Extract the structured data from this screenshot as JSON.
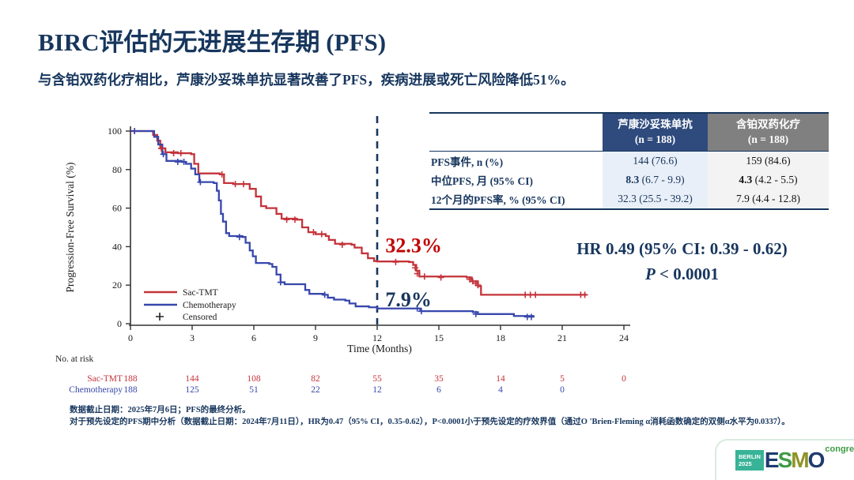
{
  "slide": {
    "title": "BIRC评估的无进展生存期 (PFS)",
    "subtitle": "与含铂双药化疗相比，芦康沙妥珠单抗显著改善了PFS，疾病进展或死亡风险降低51%。",
    "footnotes": [
      "数据截止日期：2025年7月6日；PFS的最终分析。",
      "对于预先设定的PFS期中分析（数据截止日期：2024年7月11日），HR为0.47（95% CI，0.35-0.62），P<0.0001小于预先设定的疗效界值（通过O 'Brien-Fleming α消耗函数确定的双侧α水平为0.0337）。"
    ]
  },
  "stats": {
    "hr_line": "HR 0.49 (95% CI: 0.39 - 0.62)",
    "p_italic": "P",
    "p_rest": " < 0.0001"
  },
  "table": {
    "headers": [
      {
        "title": "芦康沙妥珠单抗",
        "n": "(n = 188)",
        "bg": "#2F4B7D"
      },
      {
        "title": "含铂双药化疗",
        "n": "(n = 188)",
        "bg": "#808080"
      }
    ],
    "rows": [
      {
        "label": "PFS事件, n (%)",
        "v1b": "",
        "v1": "144 (76.6)",
        "v2b": "",
        "v2": "159 (84.6)"
      },
      {
        "label": "中位PFS, 月 (95% CI)",
        "v1b": "8.3",
        "v1": " (6.7 - 9.9)",
        "v2b": "4.3",
        "v2": " (4.2 - 5.5)"
      },
      {
        "label": "12个月的PFS率, % (95% CI)",
        "v1b": "",
        "v1": "32.3 (25.5 - 39.2)",
        "v2b": "",
        "v2": "7.9 (4.4 - 12.8)"
      }
    ]
  },
  "chart_data": {
    "type": "line",
    "subtype": "kaplan-meier-step",
    "title": "",
    "xlabel": "Time (Months)",
    "ylabel": "Progression-Free Survival (%)",
    "xlim": [
      0,
      26
    ],
    "ylim": [
      0,
      100
    ],
    "xticks": [
      0,
      3,
      6,
      9,
      12,
      15,
      18,
      21,
      24
    ],
    "yticks": [
      0,
      20,
      40,
      60,
      80,
      100
    ],
    "grid": false,
    "legend_position": "inside-lower-left",
    "reference_line_x": 12,
    "annotations": [
      {
        "text": "32.3%",
        "x": 12.4,
        "y": 37,
        "color": "#C00000"
      },
      {
        "text": "7.9%",
        "x": 12.4,
        "y": 9,
        "color": "#17365D"
      }
    ],
    "legend": [
      {
        "label": "Sac-TMT",
        "color": "#C4333A",
        "marker": "line"
      },
      {
        "label": "Chemotherapy",
        "color": "#3747AC",
        "marker": "line"
      },
      {
        "label": "Censored",
        "color": "#222222",
        "marker": "plus"
      }
    ],
    "series": [
      {
        "name": "Sac-TMT",
        "color": "#C4333A",
        "steps": [
          [
            0,
            100
          ],
          [
            1.1,
            98
          ],
          [
            1.3,
            95
          ],
          [
            1.45,
            91
          ],
          [
            1.7,
            89
          ],
          [
            2.3,
            88.5
          ],
          [
            2.95,
            88
          ],
          [
            3.1,
            83
          ],
          [
            3.3,
            78
          ],
          [
            4.35,
            77.5
          ],
          [
            4.55,
            73
          ],
          [
            5.0,
            72.5
          ],
          [
            5.8,
            70
          ],
          [
            6.1,
            66
          ],
          [
            6.35,
            61
          ],
          [
            6.6,
            60
          ],
          [
            7.1,
            57
          ],
          [
            7.35,
            54.5
          ],
          [
            8.1,
            54
          ],
          [
            8.35,
            50
          ],
          [
            8.65,
            47.5
          ],
          [
            9.0,
            46.5
          ],
          [
            9.5,
            45.5
          ],
          [
            9.65,
            43.5
          ],
          [
            9.95,
            41.5
          ],
          [
            10.75,
            41
          ],
          [
            10.9,
            39.5
          ],
          [
            11.25,
            36.5
          ],
          [
            11.55,
            34
          ],
          [
            11.85,
            32.5
          ],
          [
            12.0,
            32.3
          ],
          [
            13.55,
            32
          ],
          [
            13.75,
            30.5
          ],
          [
            13.9,
            27.5
          ],
          [
            14.05,
            24.5
          ],
          [
            16.35,
            24
          ],
          [
            16.6,
            22
          ],
          [
            16.9,
            19.5
          ],
          [
            17.05,
            15
          ],
          [
            22.2,
            15
          ]
        ],
        "censors": [
          [
            0.2,
            100
          ],
          [
            1.5,
            91
          ],
          [
            2.1,
            88.5
          ],
          [
            2.45,
            88.5
          ],
          [
            4.45,
            77.5
          ],
          [
            5.1,
            72.5
          ],
          [
            5.5,
            72.5
          ],
          [
            7.6,
            54
          ],
          [
            8.0,
            54
          ],
          [
            8.9,
            47.5
          ],
          [
            9.3,
            46.5
          ],
          [
            10.3,
            41
          ],
          [
            12.9,
            32
          ],
          [
            13.85,
            29
          ],
          [
            13.95,
            26
          ],
          [
            14.3,
            24.5
          ],
          [
            15.1,
            24
          ],
          [
            16.5,
            23
          ],
          [
            16.65,
            22
          ],
          [
            16.8,
            21
          ],
          [
            16.9,
            20
          ],
          [
            19.2,
            15
          ],
          [
            19.45,
            15
          ],
          [
            19.7,
            15
          ],
          [
            21.9,
            15
          ],
          [
            22.1,
            15
          ]
        ]
      },
      {
        "name": "Chemotherapy",
        "color": "#3747AC",
        "steps": [
          [
            0,
            100
          ],
          [
            1.15,
            97
          ],
          [
            1.35,
            93
          ],
          [
            1.55,
            88
          ],
          [
            1.75,
            84.5
          ],
          [
            2.5,
            84
          ],
          [
            2.7,
            83
          ],
          [
            2.95,
            80.5
          ],
          [
            3.15,
            77.5
          ],
          [
            3.35,
            73.5
          ],
          [
            4.05,
            73
          ],
          [
            4.2,
            69
          ],
          [
            4.3,
            64
          ],
          [
            4.4,
            57
          ],
          [
            4.5,
            53
          ],
          [
            4.65,
            47
          ],
          [
            4.8,
            45.5
          ],
          [
            5.45,
            45
          ],
          [
            5.6,
            42
          ],
          [
            5.8,
            38
          ],
          [
            5.95,
            35
          ],
          [
            6.1,
            31.5
          ],
          [
            6.75,
            31
          ],
          [
            6.9,
            29.5
          ],
          [
            7.1,
            25.5
          ],
          [
            7.3,
            21.5
          ],
          [
            7.5,
            20.5
          ],
          [
            8.3,
            20.5
          ],
          [
            8.5,
            17.5
          ],
          [
            8.7,
            15.5
          ],
          [
            9.4,
            15
          ],
          [
            9.6,
            13.5
          ],
          [
            9.9,
            12.5
          ],
          [
            10.45,
            12
          ],
          [
            10.65,
            10.5
          ],
          [
            10.95,
            9
          ],
          [
            11.6,
            8.5
          ],
          [
            12.0,
            7.9
          ],
          [
            13.9,
            7.9
          ],
          [
            14.1,
            6.5
          ],
          [
            16.65,
            6
          ],
          [
            16.9,
            5
          ],
          [
            18.45,
            5
          ],
          [
            18.65,
            4
          ],
          [
            19.6,
            3.5
          ]
        ],
        "censors": [
          [
            0.2,
            100
          ],
          [
            1.6,
            88
          ],
          [
            2.3,
            84
          ],
          [
            2.6,
            84
          ],
          [
            3.4,
            73.5
          ],
          [
            5.3,
            45
          ],
          [
            7.3,
            21.5
          ],
          [
            9.45,
            15
          ],
          [
            13.95,
            7.9
          ],
          [
            14.15,
            6.5
          ],
          [
            16.8,
            5
          ],
          [
            19.3,
            3.5
          ],
          [
            19.5,
            3.5
          ]
        ]
      }
    ],
    "at_risk": {
      "title": "No. at risk",
      "rows": [
        {
          "name": "Sac-TMT",
          "color": "#C4333A",
          "values": [
            188,
            144,
            108,
            82,
            55,
            35,
            14,
            5,
            0
          ]
        },
        {
          "name": "Chemotherapy",
          "color": "#3747AC",
          "values": [
            188,
            125,
            51,
            22,
            12,
            6,
            4,
            0
          ]
        }
      ]
    }
  },
  "logo": {
    "berlin_line1": "BERLIN",
    "berlin_line2": "2025",
    "letters": [
      {
        "char": "E",
        "color": "#1E3B6E"
      },
      {
        "char": "S",
        "color": "#3F9C45"
      },
      {
        "char": "M",
        "color": "#8F9326"
      },
      {
        "char": "O",
        "color": "#1E3B6E"
      }
    ],
    "congress": "congress"
  }
}
